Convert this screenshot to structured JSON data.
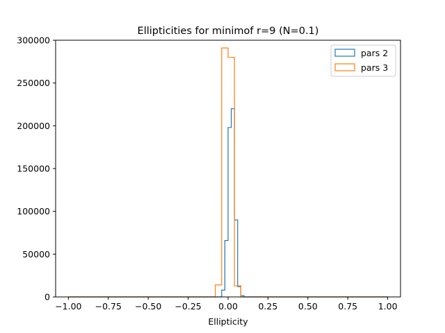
{
  "chart_data": {
    "type": "histogram",
    "title": "Ellipticities for minimof r=9 (N=0.1)",
    "xlabel": "Ellipticity",
    "ylabel": "",
    "xlim": [
      -1.08,
      1.08
    ],
    "ylim": [
      0,
      300000
    ],
    "xticks": [
      -1.0,
      -0.75,
      -0.5,
      -0.25,
      0.0,
      0.25,
      0.5,
      0.75,
      1.0
    ],
    "xtick_labels": [
      "−1.00",
      "−0.75",
      "−0.50",
      "−0.25",
      "0.00",
      "0.25",
      "0.50",
      "0.75",
      "1.00"
    ],
    "yticks": [
      0,
      50000,
      100000,
      150000,
      200000,
      250000,
      300000
    ],
    "ytick_labels": [
      "0",
      "50000",
      "100000",
      "150000",
      "200000",
      "250000",
      "300000"
    ],
    "grid": false,
    "legend_position": "top-right",
    "series": [
      {
        "name": "pars 2",
        "color": "#1f77b4",
        "range": [
          -1.0,
          1.0
        ],
        "bin_edges": [
          -0.04,
          -0.02,
          0.0,
          0.02,
          0.04,
          0.06,
          0.08,
          0.1
        ],
        "counts": [
          8000,
          66000,
          198000,
          220000,
          90000,
          12000,
          1500
        ]
      },
      {
        "name": "pars 3",
        "color": "#ff7f0e",
        "range": [
          -1.0,
          1.0
        ],
        "bin_edges": [
          -0.08,
          -0.04,
          0.0,
          0.04,
          0.08
        ],
        "counts": [
          14000,
          291000,
          280000,
          13000
        ]
      }
    ]
  }
}
